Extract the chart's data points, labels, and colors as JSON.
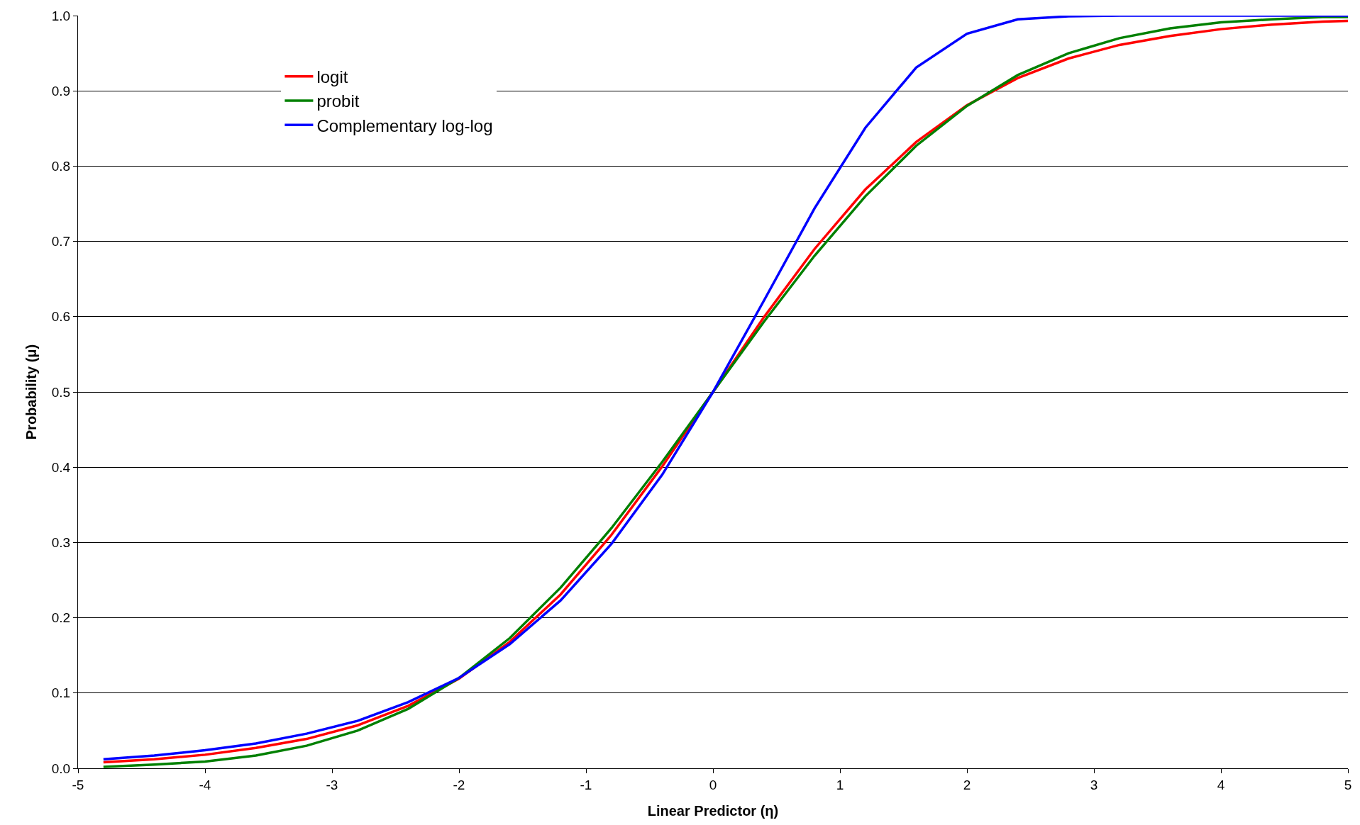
{
  "chart_data": {
    "type": "line",
    "xlabel": "Linear Predictor (η)",
    "ylabel": "Probability (μ)",
    "x": [
      -4.8,
      -4.4,
      -4,
      -3.6,
      -3.2,
      -2.8,
      -2.4,
      -2,
      -1.6,
      -1.2,
      -0.8,
      -0.4,
      0,
      0.4,
      0.8,
      1.2,
      1.6,
      2,
      2.4,
      2.8,
      3.2,
      3.6,
      4,
      4.4,
      4.8,
      5
    ],
    "series": [
      {
        "name": "logit",
        "color": "#ff0000",
        "values": [
          0.008,
          0.012,
          0.018,
          0.027,
          0.039,
          0.057,
          0.083,
          0.119,
          0.168,
          0.231,
          0.31,
          0.401,
          0.5,
          0.599,
          0.69,
          0.769,
          0.832,
          0.881,
          0.917,
          0.943,
          0.961,
          0.973,
          0.982,
          0.988,
          0.992,
          0.993
        ]
      },
      {
        "name": "probit",
        "color": "#008000",
        "values": [
          0.002,
          0.005,
          0.009,
          0.017,
          0.03,
          0.05,
          0.079,
          0.12,
          0.173,
          0.24,
          0.319,
          0.407,
          0.5,
          0.593,
          0.681,
          0.76,
          0.827,
          0.88,
          0.921,
          0.95,
          0.97,
          0.983,
          0.991,
          0.995,
          0.998,
          0.998
        ]
      },
      {
        "name": "Complementary log-log",
        "color": "#0000ff",
        "values": [
          0.012,
          0.017,
          0.024,
          0.033,
          0.046,
          0.063,
          0.088,
          0.12,
          0.165,
          0.223,
          0.298,
          0.39,
          0.5,
          0.621,
          0.744,
          0.851,
          0.931,
          0.976,
          0.995,
          0.999,
          1.0,
          1.0,
          1.0,
          1.0,
          1.0,
          1.0
        ]
      }
    ],
    "xlim": [
      -5,
      5
    ],
    "xticks": [
      -5,
      -4,
      -3,
      -2,
      -1,
      0,
      1,
      2,
      3,
      4,
      5
    ],
    "ylim": [
      0,
      1
    ],
    "yticks": [
      {
        "value": 0,
        "label": "0.0"
      },
      {
        "value": 0.1,
        "label": "0.1"
      },
      {
        "value": 0.2,
        "label": "0.2"
      },
      {
        "value": 0.3,
        "label": "0.3"
      },
      {
        "value": 0.4,
        "label": "0.4"
      },
      {
        "value": 0.5,
        "label": "0.5"
      },
      {
        "value": 0.6,
        "label": "0.6"
      },
      {
        "value": 0.7,
        "label": "0.7"
      },
      {
        "value": 0.8,
        "label": "0.8"
      },
      {
        "value": 0.9,
        "label": "0.9"
      },
      {
        "value": 1,
        "label": "1.0"
      }
    ],
    "grid": "y",
    "legend": "top left",
    "marker": "none",
    "line_style": "solid"
  }
}
